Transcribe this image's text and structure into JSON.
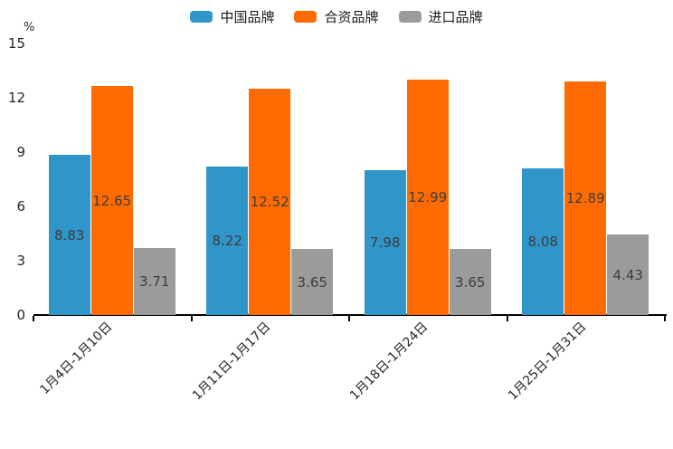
{
  "chart_data": {
    "type": "bar",
    "title": "",
    "categories": [
      "1月4日-1月10日",
      "1月11日-1月17日",
      "1月18日-1月24日",
      "1月25日-1月31日"
    ],
    "series": [
      {
        "name": "中国品牌",
        "color": "#3095c9",
        "values": [
          8.83,
          8.22,
          7.98,
          8.08
        ]
      },
      {
        "name": "合资品牌",
        "color": "#ff6b00",
        "values": [
          12.65,
          12.52,
          12.99,
          12.89
        ]
      },
      {
        "name": "进口品牌",
        "color": "#9b9b9b",
        "values": [
          3.71,
          3.65,
          3.65,
          4.43
        ]
      }
    ],
    "xlabel": "",
    "ylabel": "%",
    "ylim": [
      0,
      15
    ],
    "yticks": [
      0,
      3,
      6,
      9,
      12,
      15
    ],
    "grid": false,
    "legend_position": "top",
    "value_labels_shown": true,
    "value_label_color": "#3d3d3d",
    "tick_label_color": "#262626",
    "axis_color": "#000000",
    "background_color": "#ffffff"
  }
}
